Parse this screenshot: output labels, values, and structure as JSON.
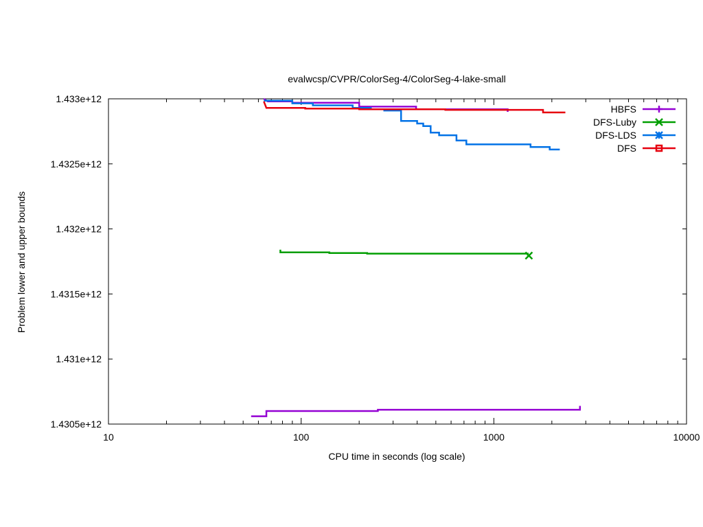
{
  "chart_data": {
    "type": "line",
    "title": "evalwcsp/CVPR/ColorSeg-4/ColorSeg-4-lake-small",
    "xlabel": "CPU time in seconds (log scale)",
    "ylabel": "Problem lower and upper bounds",
    "x_scale": "log",
    "xlim": [
      10,
      10000
    ],
    "ylim": [
      1430500000000,
      1433000000000
    ],
    "x_ticks": [
      {
        "value": 10,
        "label": "10"
      },
      {
        "value": 100,
        "label": "100"
      },
      {
        "value": 1000,
        "label": "1000"
      },
      {
        "value": 10000,
        "label": "10000"
      }
    ],
    "y_ticks": [
      {
        "value": 1430500000000,
        "label": "1.4305e+12"
      },
      {
        "value": 1431000000000,
        "label": "1.431e+12"
      },
      {
        "value": 1431500000000,
        "label": "1.4315e+12"
      },
      {
        "value": 1432000000000,
        "label": "1.432e+12"
      },
      {
        "value": 1432500000000,
        "label": "1.4325e+12"
      },
      {
        "value": 1433000000000,
        "label": "1.433e+12"
      }
    ],
    "grid": false,
    "legend_position": "top-right",
    "series": [
      {
        "name": "HBFS",
        "color": "#9400d3",
        "marker": "plus",
        "segments": [
          [
            [
              64,
              1433000000000
            ],
            [
              67,
              1432980000000
            ],
            [
              90,
              1432980000000
            ],
            [
              90,
              1432970000000
            ],
            [
              200,
              1432970000000
            ],
            [
              200,
              1432940000000
            ],
            [
              395,
              1432940000000
            ],
            [
              395,
              1432920000000
            ],
            [
              1180,
              1432920000000
            ],
            [
              1180,
              1432900000000
            ]
          ],
          [
            [
              55,
              1430560000000
            ],
            [
              66,
              1430560000000
            ],
            [
              66,
              1430600000000
            ],
            [
              250,
              1430600000000
            ],
            [
              250,
              1430610000000
            ],
            [
              2800,
              1430610000000
            ],
            [
              2800,
              1430640000000
            ]
          ]
        ],
        "marker_points": []
      },
      {
        "name": "DFS-Luby",
        "color": "#009e00",
        "marker": "cross",
        "segments": [
          [
            [
              78,
              1431840000000
            ],
            [
              78,
              1431820000000
            ],
            [
              140,
              1431820000000
            ],
            [
              140,
              1431815000000
            ],
            [
              220,
              1431815000000
            ],
            [
              220,
              1431810000000
            ],
            [
              1500,
              1431810000000
            ],
            [
              1500,
              1431795000000
            ]
          ]
        ],
        "marker_points": [
          [
            1520,
            1431795000000
          ]
        ]
      },
      {
        "name": "DFS-LDS",
        "color": "#0072e6",
        "marker": "star",
        "segments": [
          [
            [
              64,
              1432985000000
            ],
            [
              90,
              1432985000000
            ],
            [
              90,
              1432965000000
            ],
            [
              115,
              1432965000000
            ],
            [
              115,
              1432950000000
            ],
            [
              185,
              1432950000000
            ],
            [
              185,
              1432930000000
            ],
            [
              230,
              1432930000000
            ],
            [
              230,
              1432920000000
            ],
            [
              270,
              1432920000000
            ],
            [
              270,
              1432910000000
            ],
            [
              330,
              1432910000000
            ],
            [
              330,
              1432830000000
            ],
            [
              400,
              1432830000000
            ],
            [
              400,
              1432810000000
            ],
            [
              430,
              1432810000000
            ],
            [
              430,
              1432790000000
            ],
            [
              470,
              1432790000000
            ],
            [
              470,
              1432740000000
            ],
            [
              520,
              1432740000000
            ],
            [
              520,
              1432720000000
            ],
            [
              640,
              1432720000000
            ],
            [
              640,
              1432680000000
            ],
            [
              720,
              1432680000000
            ],
            [
              720,
              1432650000000
            ],
            [
              1550,
              1432650000000
            ],
            [
              1550,
              1432630000000
            ],
            [
              1950,
              1432630000000
            ],
            [
              1950,
              1432610000000
            ],
            [
              2200,
              1432610000000
            ]
          ]
        ],
        "marker_points": []
      },
      {
        "name": "DFS",
        "color": "#e6000e",
        "marker": "box",
        "segments": [
          [
            [
              64,
              1432980000000
            ],
            [
              66,
              1432930000000
            ],
            [
              105,
              1432930000000
            ],
            [
              105,
              1432925000000
            ],
            [
              200,
              1432925000000
            ],
            [
              200,
              1432920000000
            ],
            [
              560,
              1432920000000
            ],
            [
              560,
              1432915000000
            ],
            [
              1800,
              1432915000000
            ],
            [
              1800,
              1432895000000
            ],
            [
              2350,
              1432895000000
            ]
          ]
        ],
        "marker_points": []
      }
    ]
  }
}
